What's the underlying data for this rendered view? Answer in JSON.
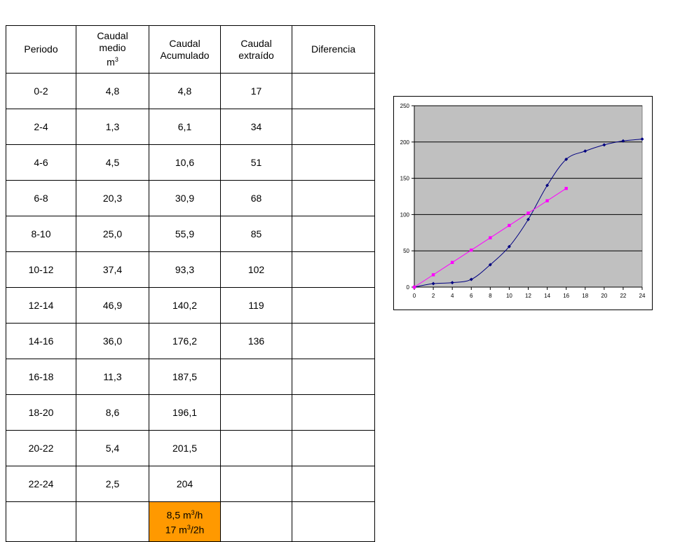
{
  "table": {
    "headers": [
      {
        "lines": [
          "Caudal",
          "medio"
        ],
        "base": "m",
        "sup": "3"
      },
      {
        "lines": [
          "Caudal",
          "Acumulado"
        ]
      },
      {
        "lines": [
          "Caudal",
          "extraído"
        ]
      },
      {
        "lines": [
          "Diferencia"
        ]
      }
    ],
    "header_periodo": "Periodo",
    "rows": [
      [
        "0-2",
        "4,8",
        "4,8",
        "17",
        ""
      ],
      [
        "2-4",
        "1,3",
        "6,1",
        "34",
        ""
      ],
      [
        "4-6",
        "4,5",
        "10,6",
        "51",
        ""
      ],
      [
        "6-8",
        "20,3",
        "30,9",
        "68",
        ""
      ],
      [
        "8-10",
        "25,0",
        "55,9",
        "85",
        ""
      ],
      [
        "10-12",
        "37,4",
        "93,3",
        "102",
        ""
      ],
      [
        "12-14",
        "46,9",
        "140,2",
        "119",
        ""
      ],
      [
        "14-16",
        "36,0",
        "176,2",
        "136",
        ""
      ],
      [
        "16-18",
        "11,3",
        "187,5",
        "",
        ""
      ],
      [
        "18-20",
        "8,6",
        "196,1",
        "",
        ""
      ],
      [
        "20-22",
        "5,4",
        "201,5",
        "",
        ""
      ],
      [
        "22-24",
        "2,5",
        "204",
        "",
        ""
      ]
    ],
    "summary": {
      "line1": {
        "pre": "8,5 m",
        "sup": "3",
        "post": "/h"
      },
      "line2": {
        "pre": "17 m",
        "sup": "3",
        "post": "/2h"
      }
    }
  },
  "colors": {
    "highlight": "#ff9900",
    "plot_bg": "#c0c0c0",
    "series_cumulative": "#000080",
    "series_extracted": "#ff00ff"
  },
  "chart_data": {
    "type": "line",
    "x_ticks": [
      "0",
      "2",
      "4",
      "6",
      "8",
      "10",
      "12",
      "14",
      "16",
      "18",
      "20",
      "22",
      "24"
    ],
    "y_ticks": [
      "0",
      "50",
      "100",
      "150",
      "200",
      "250"
    ],
    "xlim": [
      0,
      24
    ],
    "ylim": [
      0,
      250
    ],
    "grid": "horizontal",
    "series": [
      {
        "marker": "diamond",
        "smooth": true,
        "x": [
          0,
          2,
          4,
          6,
          8,
          10,
          12,
          14,
          16,
          18,
          20,
          22,
          24
        ],
        "y": [
          0,
          4.8,
          6.1,
          10.6,
          30.9,
          55.9,
          93.3,
          140.2,
          176.2,
          187.5,
          196.1,
          201.5,
          204
        ]
      },
      {
        "marker": "square",
        "smooth": false,
        "x": [
          0,
          2,
          4,
          6,
          8,
          10,
          12,
          14,
          16
        ],
        "y": [
          0,
          17,
          34,
          51,
          68,
          85,
          102,
          119,
          136
        ]
      }
    ]
  }
}
